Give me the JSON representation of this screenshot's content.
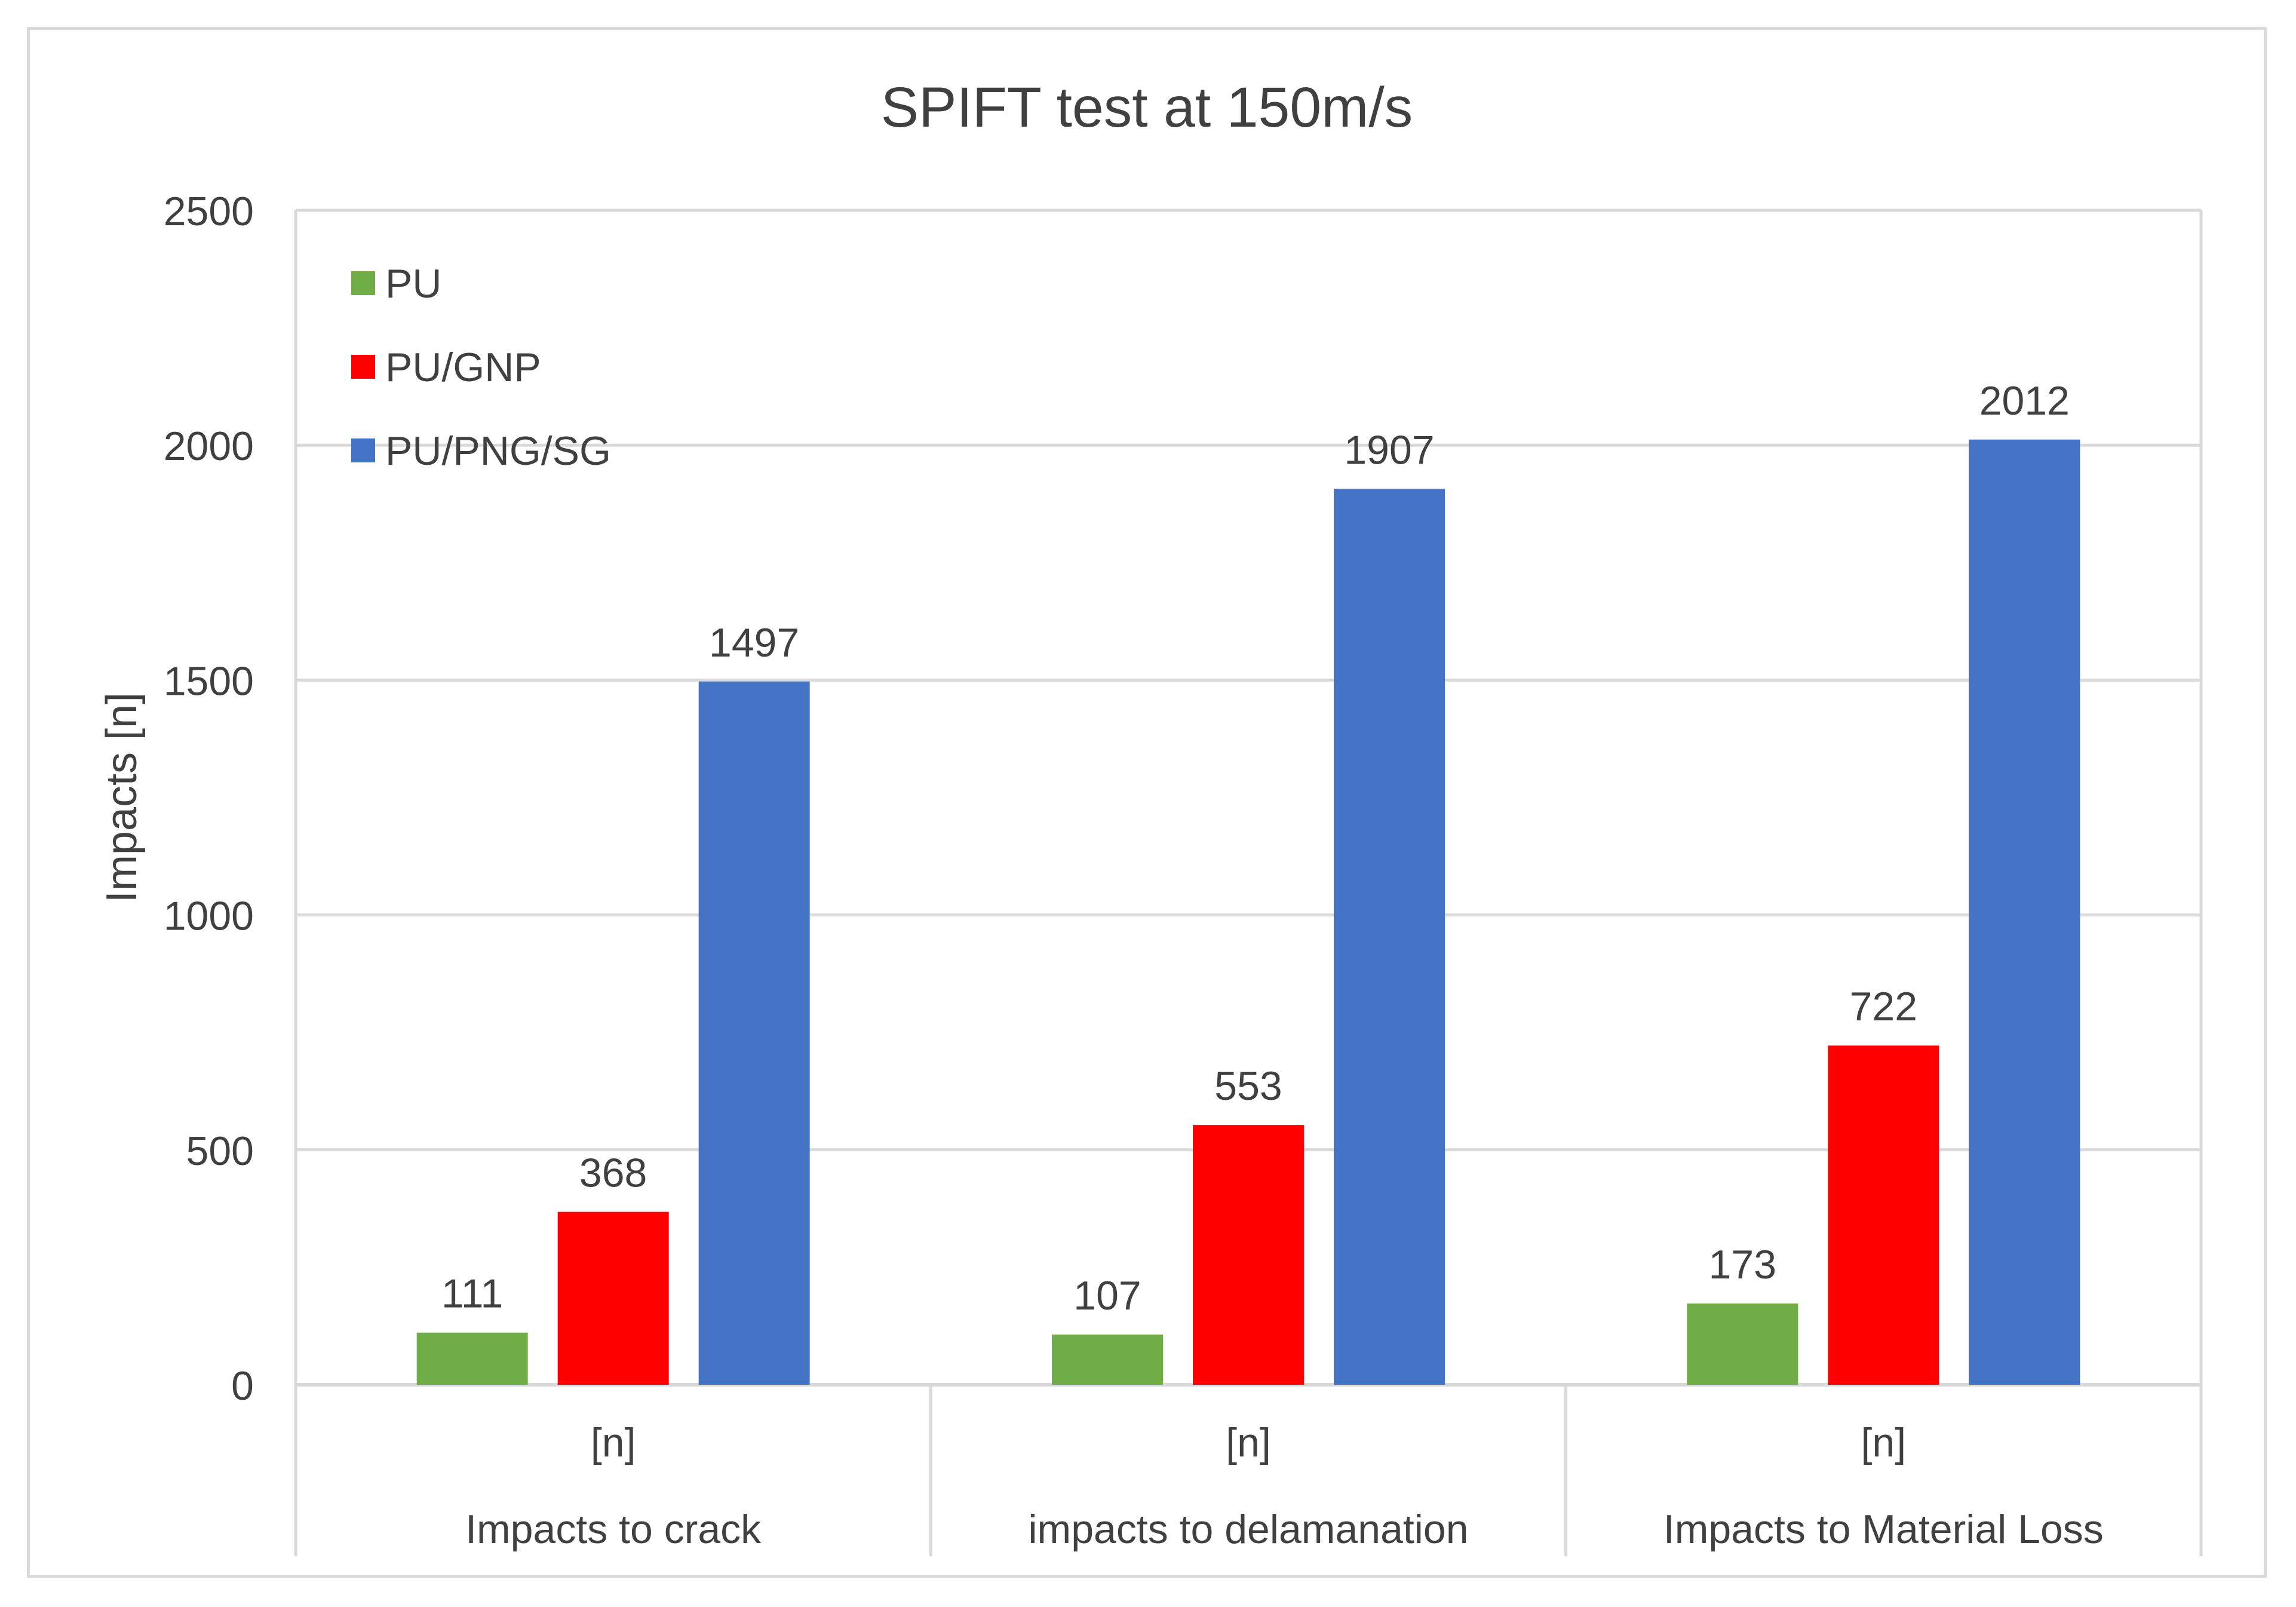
{
  "chart_data": {
    "type": "bar",
    "title": "SPIFT test at 150m/s",
    "xlabel": "",
    "ylabel": "Impacts [n]",
    "ylim": [
      0,
      2500
    ],
    "yticks": [
      0,
      500,
      1000,
      1500,
      2000,
      2500
    ],
    "grid": true,
    "legend_position": "top-left",
    "categories": [
      {
        "unit": "[n]",
        "label": "Impacts to crack"
      },
      {
        "unit": "[n]",
        "label": "impacts to delamanation"
      },
      {
        "unit": "[n]",
        "label": "Impacts to Material Loss"
      }
    ],
    "series": [
      {
        "name": "PU",
        "color": "#70ad47",
        "values": [
          111,
          107,
          173
        ]
      },
      {
        "name": "PU/GNP",
        "color": "#ff0000",
        "values": [
          368,
          553,
          722
        ]
      },
      {
        "name": "PU/PNG/SG",
        "color": "#4472c4",
        "values": [
          1497,
          1907,
          2012
        ]
      }
    ]
  }
}
